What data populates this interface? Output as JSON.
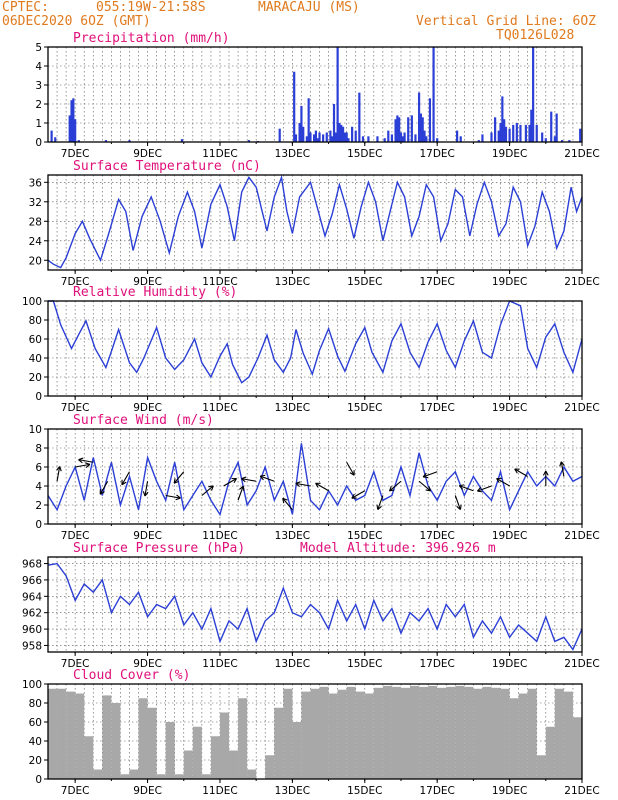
{
  "header": {
    "source": "CPTEC:",
    "coords": "055:19W-21:58S",
    "location": "MARACAJU (MS)",
    "run": "06DEC2020 6OZ (GMT)",
    "grid_note": "Vertical Grid Line: 6OZ",
    "model_id": "TQ0126L028"
  },
  "model_altitude": "Model Altitude: 396.926 m",
  "colors": {
    "title": "#e0107a",
    "header": "#e07a1f",
    "series": "#2b3fd6",
    "cloud": "#a8a8a8",
    "arrows": "#000000"
  },
  "x_ticks": [
    "7DEC",
    "9DEC",
    "11DEC",
    "13DEC",
    "15DEC",
    "17DEC",
    "19DEC",
    "21DEC"
  ],
  "chart_data": [
    {
      "type": "bar",
      "title": "Precipitation (mm/h)",
      "ylim": [
        0,
        5
      ],
      "yticks": [
        0,
        1,
        2,
        3,
        4,
        5
      ],
      "x_unit": "day of December 2020",
      "xlim": [
        6.25,
        21.0
      ],
      "x": [
        6.35,
        6.45,
        6.85,
        6.9,
        6.95,
        7.0,
        7.1,
        7.85,
        8.5,
        9.95,
        11.8,
        12.05,
        12.65,
        13.05,
        13.1,
        13.2,
        13.25,
        13.3,
        13.4,
        13.45,
        13.5,
        13.6,
        13.65,
        13.7,
        13.75,
        13.85,
        13.95,
        14.05,
        14.1,
        14.15,
        14.2,
        14.25,
        14.3,
        14.35,
        14.4,
        14.45,
        14.5,
        14.55,
        14.65,
        14.75,
        14.85,
        14.95,
        15.1,
        15.35,
        15.55,
        15.65,
        15.75,
        15.85,
        15.9,
        15.95,
        16.0,
        16.05,
        16.1,
        16.2,
        16.3,
        16.4,
        16.5,
        16.55,
        16.6,
        16.65,
        16.7,
        16.8,
        16.9,
        17.0,
        17.55,
        17.65,
        18.15,
        18.25,
        18.5,
        18.6,
        18.7,
        18.75,
        18.8,
        18.85,
        18.9,
        19.0,
        19.1,
        19.2,
        19.3,
        19.45,
        19.55,
        19.6,
        19.65,
        19.75,
        19.9,
        20.0,
        20.15,
        20.25,
        20.3,
        20.45,
        20.65,
        20.95
      ],
      "values": [
        0.6,
        0.25,
        1.4,
        2.2,
        2.3,
        1.2,
        0.1,
        0.1,
        0.1,
        0.15,
        0.1,
        0.05,
        0.7,
        3.7,
        0.4,
        1.0,
        1.9,
        0.8,
        0.3,
        2.3,
        0.5,
        0.4,
        0.6,
        0.2,
        0.5,
        0.4,
        0.5,
        0.6,
        0.3,
        2.0,
        0.5,
        5.0,
        1.0,
        0.9,
        0.8,
        0.5,
        0.5,
        0.2,
        0.8,
        0.6,
        2.6,
        0.3,
        0.3,
        0.3,
        0.2,
        0.6,
        0.4,
        1.2,
        1.4,
        1.3,
        0.5,
        0.3,
        0.5,
        1.3,
        1.4,
        0.4,
        2.6,
        1.5,
        1.3,
        0.6,
        0.3,
        2.3,
        5.0,
        0.2,
        0.6,
        0.3,
        0.1,
        0.4,
        0.5,
        1.3,
        0.6,
        1.0,
        2.4,
        1.2,
        0.8,
        0.7,
        0.9,
        1.0,
        0.9,
        0.9,
        0.9,
        1.7,
        5.0,
        0.9,
        0.5,
        0.2,
        1.6,
        0.3,
        1.5,
        0.1,
        0.1,
        0.7
      ]
    },
    {
      "type": "line",
      "title": "Surface Temperature (nC)",
      "ylim": [
        18,
        37.5
      ],
      "yticks": [
        20,
        24,
        28,
        32,
        36
      ],
      "x_unit": "day of December 2020",
      "x": [
        6.25,
        6.4,
        6.6,
        6.75,
        7.0,
        7.2,
        7.4,
        7.7,
        7.95,
        8.2,
        8.4,
        8.6,
        8.85,
        9.1,
        9.35,
        9.6,
        9.85,
        10.1,
        10.3,
        10.5,
        10.75,
        11.0,
        11.2,
        11.4,
        11.6,
        11.8,
        12.0,
        12.3,
        12.5,
        12.7,
        12.85,
        13.0,
        13.2,
        13.5,
        13.7,
        13.9,
        14.1,
        14.3,
        14.5,
        14.7,
        14.9,
        15.1,
        15.3,
        15.5,
        15.7,
        15.9,
        16.1,
        16.3,
        16.5,
        16.7,
        16.9,
        17.1,
        17.3,
        17.5,
        17.7,
        17.9,
        18.1,
        18.3,
        18.5,
        18.7,
        18.9,
        19.1,
        19.3,
        19.5,
        19.7,
        19.9,
        20.1,
        20.3,
        20.5,
        20.7,
        20.85,
        21.0
      ],
      "values": [
        20,
        19.2,
        18.5,
        20.5,
        25.5,
        28,
        24.5,
        20,
        26,
        32.5,
        30,
        22,
        29,
        33,
        28,
        21.5,
        29,
        34,
        30,
        22.5,
        31.5,
        35.5,
        31,
        24,
        34,
        37,
        35,
        26,
        33,
        37,
        30,
        25.5,
        33,
        36,
        30.5,
        25,
        29.5,
        35.5,
        30.5,
        24.5,
        31,
        36,
        32,
        24,
        30,
        36,
        33,
        25,
        29,
        35.5,
        33,
        24,
        27.5,
        34.5,
        33,
        25,
        31.5,
        36,
        32,
        25,
        27.5,
        35,
        32,
        23,
        27,
        34,
        30,
        22.5,
        26,
        35,
        30,
        33
      ]
    },
    {
      "type": "line",
      "title": "Relative Humidity (%)",
      "ylim": [
        0,
        100
      ],
      "yticks": [
        0,
        20,
        40,
        60,
        80,
        100
      ],
      "x_unit": "day of December 2020",
      "x": [
        6.25,
        6.4,
        6.6,
        6.9,
        7.1,
        7.3,
        7.55,
        7.85,
        8.0,
        8.2,
        8.5,
        8.7,
        8.9,
        9.25,
        9.5,
        9.75,
        10.0,
        10.3,
        10.5,
        10.75,
        11.0,
        11.2,
        11.35,
        11.6,
        11.8,
        12.05,
        12.3,
        12.5,
        12.75,
        12.95,
        13.1,
        13.3,
        13.55,
        13.75,
        14.0,
        14.25,
        14.45,
        14.75,
        15.0,
        15.2,
        15.5,
        15.75,
        16.0,
        16.25,
        16.5,
        16.75,
        17.0,
        17.25,
        17.5,
        17.75,
        18.0,
        18.25,
        18.5,
        18.75,
        19.0,
        19.3,
        19.5,
        19.75,
        20.0,
        20.25,
        20.5,
        20.75,
        21.0
      ],
      "values": [
        100,
        100,
        75,
        50,
        65,
        79,
        50,
        30,
        47,
        70,
        35,
        25,
        40,
        72,
        40,
        28,
        38,
        60,
        35,
        20,
        42,
        55,
        33,
        14,
        20,
        40,
        64,
        38,
        25,
        40,
        70,
        45,
        23,
        48,
        71,
        42,
        26,
        55,
        72,
        46,
        25,
        58,
        76,
        46,
        30,
        57,
        76,
        48,
        30,
        58,
        79,
        46,
        40,
        75,
        100,
        95,
        50,
        30,
        62,
        76,
        46,
        25,
        60
      ]
    },
    {
      "type": "line",
      "title": "Surface Wind (m/s)",
      "ylim": [
        0,
        10
      ],
      "yticks": [
        0,
        2,
        4,
        6,
        8,
        10
      ],
      "x_unit": "day of December 2020",
      "x": [
        6.25,
        6.5,
        6.75,
        7.0,
        7.25,
        7.5,
        7.75,
        8.0,
        8.25,
        8.5,
        8.75,
        9.0,
        9.25,
        9.5,
        9.75,
        10.0,
        10.25,
        10.5,
        10.75,
        11.0,
        11.25,
        11.5,
        11.75,
        12.0,
        12.25,
        12.5,
        12.75,
        13.0,
        13.25,
        13.5,
        13.75,
        14.0,
        14.25,
        14.5,
        14.75,
        15.0,
        15.25,
        15.5,
        15.75,
        16.0,
        16.25,
        16.5,
        16.75,
        17.0,
        17.25,
        17.5,
        17.75,
        18.0,
        18.25,
        18.5,
        18.75,
        19.0,
        19.25,
        19.5,
        19.75,
        20.0,
        20.25,
        20.5,
        20.75,
        21.0
      ],
      "values": [
        3.0,
        1.5,
        4.0,
        6.0,
        2.5,
        7.0,
        3.0,
        6.5,
        2.0,
        5.0,
        1.5,
        7.0,
        4.5,
        2.5,
        6.5,
        1.5,
        3.0,
        4.5,
        2.5,
        1.0,
        4.5,
        6.5,
        2.0,
        3.5,
        6.0,
        2.5,
        4.5,
        1.0,
        8.5,
        2.5,
        1.5,
        3.5,
        2.0,
        4.0,
        2.5,
        3.0,
        5.5,
        2.5,
        3.0,
        6.0,
        3.0,
        7.5,
        4.0,
        2.5,
        4.5,
        5.5,
        3.0,
        5.0,
        3.5,
        2.5,
        5.5,
        1.5,
        3.5,
        5.5,
        4.0,
        5.0,
        4.0,
        6.0,
        4.5,
        5.0
      ],
      "arrows": {
        "x": [
          6.5,
          7.0,
          7.5,
          7.9,
          8.5,
          9.0,
          9.5,
          10.0,
          10.5,
          11.1,
          11.5,
          12.0,
          12.5,
          13.0,
          13.5,
          14.0,
          14.5,
          15.0,
          15.5,
          16.0,
          16.5,
          17.0,
          17.5,
          18.0,
          18.5,
          19.0,
          19.5,
          20.0,
          20.5
        ],
        "speed": [
          4.5,
          6.0,
          6.5,
          4.5,
          5.5,
          4.5,
          3.0,
          5.5,
          3.0,
          4.0,
          2.5,
          4.5,
          4.5,
          1.5,
          4.0,
          3.5,
          6.5,
          3.5,
          3.0,
          4.5,
          4.5,
          5.5,
          3.0,
          3.5,
          4.0,
          4.0,
          5.0,
          4.0,
          5.0
        ],
        "dir_deg": [
          80,
          10,
          170,
          240,
          240,
          260,
          350,
          230,
          40,
          30,
          70,
          170,
          160,
          130,
          170,
          150,
          300,
          210,
          250,
          220,
          320,
          200,
          290,
          160,
          200,
          150,
          150,
          90,
          100
        ]
      }
    },
    {
      "type": "line",
      "title": "Surface Pressure (hPa)",
      "ylim": [
        957.2,
        968.8
      ],
      "yticks": [
        958,
        960,
        962,
        964,
        966,
        968
      ],
      "x_unit": "day of December 2020",
      "x": [
        6.25,
        6.5,
        6.75,
        7.0,
        7.25,
        7.5,
        7.75,
        8.0,
        8.25,
        8.5,
        8.75,
        9.0,
        9.25,
        9.5,
        9.75,
        10.0,
        10.25,
        10.5,
        10.75,
        11.0,
        11.25,
        11.5,
        11.75,
        12.0,
        12.25,
        12.5,
        12.75,
        13.0,
        13.25,
        13.5,
        13.75,
        14.0,
        14.25,
        14.5,
        14.75,
        15.0,
        15.25,
        15.5,
        15.75,
        16.0,
        16.25,
        16.5,
        16.75,
        17.0,
        17.25,
        17.5,
        17.75,
        18.0,
        18.25,
        18.5,
        18.75,
        19.0,
        19.25,
        19.5,
        19.75,
        20.0,
        20.25,
        20.5,
        20.75,
        21.0
      ],
      "values": [
        967.8,
        968.0,
        966.5,
        963.5,
        965.5,
        964.5,
        966.0,
        962.0,
        964.0,
        963.0,
        964.5,
        961.5,
        963.0,
        962.5,
        964.0,
        960.5,
        962.0,
        960.0,
        962.5,
        958.5,
        961.0,
        960.0,
        962.5,
        958.5,
        961.0,
        962.0,
        965.0,
        962.0,
        961.5,
        963.0,
        962.0,
        960.0,
        963.5,
        961.0,
        963.0,
        960.0,
        963.5,
        961.0,
        962.5,
        959.5,
        962.0,
        961.0,
        962.5,
        960.0,
        963.0,
        961.5,
        963.0,
        959.0,
        961.0,
        959.5,
        961.5,
        959.0,
        960.5,
        959.5,
        958.5,
        961.5,
        958.5,
        959.0,
        957.5,
        960.0
      ]
    },
    {
      "type": "area",
      "title": "Cloud Cover (%)",
      "ylim": [
        0,
        100
      ],
      "yticks": [
        0,
        20,
        40,
        60,
        80,
        100
      ],
      "x_unit": "day of December 2020",
      "x": [
        6.25,
        6.5,
        6.75,
        7.0,
        7.25,
        7.5,
        7.75,
        8.0,
        8.25,
        8.5,
        8.75,
        9.0,
        9.25,
        9.5,
        9.75,
        10.0,
        10.25,
        10.5,
        10.75,
        11.0,
        11.25,
        11.5,
        11.75,
        12.0,
        12.25,
        12.5,
        12.75,
        13.0,
        13.25,
        13.5,
        13.75,
        14.0,
        14.25,
        14.5,
        14.75,
        15.0,
        15.25,
        15.5,
        15.75,
        16.0,
        16.25,
        16.5,
        16.75,
        17.0,
        17.25,
        17.5,
        17.75,
        18.0,
        18.25,
        18.5,
        18.75,
        19.0,
        19.25,
        19.5,
        19.75,
        20.0,
        20.25,
        20.5,
        20.75,
        21.0
      ],
      "values": [
        95,
        95,
        92,
        90,
        45,
        10,
        88,
        80,
        5,
        10,
        85,
        75,
        5,
        60,
        5,
        30,
        55,
        5,
        45,
        70,
        30,
        85,
        10,
        0,
        25,
        75,
        95,
        60,
        92,
        95,
        97,
        90,
        94,
        97,
        92,
        90,
        96,
        98,
        97,
        96,
        98,
        97,
        98,
        96,
        97,
        98,
        97,
        95,
        97,
        96,
        95,
        85,
        90,
        95,
        25,
        55,
        95,
        92,
        65,
        95
      ]
    }
  ]
}
